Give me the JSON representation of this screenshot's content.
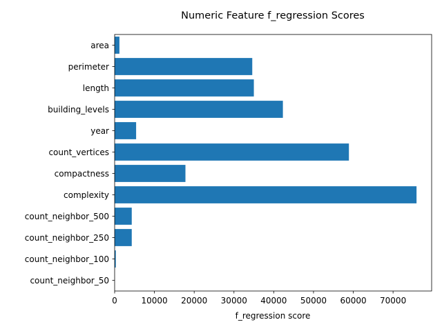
{
  "chart_data": {
    "type": "bar",
    "orientation": "horizontal",
    "title": "Numeric Feature f_regression Scores",
    "xlabel": "f_regression score",
    "ylabel": "",
    "categories": [
      "area",
      "perimeter",
      "length",
      "building_levels",
      "year",
      "count_vertices",
      "compactness",
      "complexity",
      "count_neighbor_500",
      "count_neighbor_250",
      "count_neighbor_100",
      "count_neighbor_50"
    ],
    "values": [
      1200,
      34600,
      35000,
      42300,
      5400,
      58900,
      17800,
      75900,
      4300,
      4300,
      300,
      0
    ],
    "xlim": [
      0,
      79700
    ],
    "xticks": [
      0,
      10000,
      20000,
      30000,
      40000,
      50000,
      60000,
      70000
    ],
    "xtick_labels": [
      "0",
      "10000",
      "20000",
      "30000",
      "40000",
      "50000",
      "60000",
      "70000"
    ],
    "grid": false,
    "bar_color": "#1f77b4"
  }
}
